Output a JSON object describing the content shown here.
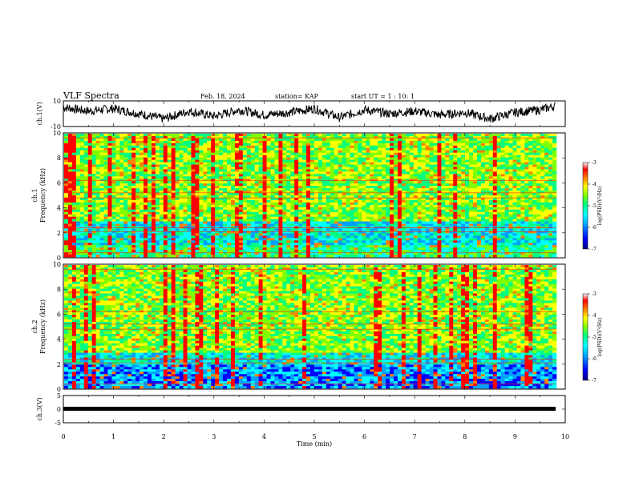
{
  "header": {
    "title": "VLF Spectra",
    "date": "Feb. 18, 2024",
    "station": "station= KAP",
    "start": "start UT = 1 : 10: 1"
  },
  "colors": {
    "waveform": "#000000",
    "colormap": [
      "#000080",
      "#0000ff",
      "#00a0ff",
      "#00ffff",
      "#00ff80",
      "#80ff00",
      "#ffff00",
      "#ff8000",
      "#ff0000",
      "#ffffff"
    ]
  },
  "chart_data": [
    {
      "type": "line",
      "panel": "waveform-ch1",
      "ylabel": "ch.1(V)",
      "ylim": [
        -10,
        10
      ],
      "yticks": [
        "10",
        "-10"
      ],
      "xlim": [
        0,
        10
      ],
      "description_values_note": "signal oscillates roughly between -8 and 10 V",
      "sample_x": [
        0,
        0.5,
        1,
        1.5,
        2,
        2.5,
        3,
        3.5,
        4,
        4.5,
        5,
        5.5,
        6,
        6.5,
        7,
        7.5,
        8,
        8.5,
        9,
        9.5,
        9.8
      ],
      "sample_y": [
        5,
        2,
        4,
        0,
        -4,
        2,
        -2,
        3,
        -1,
        1,
        4,
        -3,
        3,
        0,
        2,
        -1,
        1,
        -4,
        1,
        3,
        6
      ]
    },
    {
      "type": "heatmap",
      "panel": "spectrogram-ch1",
      "ylabel": "ch.1 Frequency (kHz)",
      "ylim": [
        0,
        10
      ],
      "yticks": [
        "0",
        "2",
        "4",
        "6",
        "8",
        "10"
      ],
      "xlim": [
        0,
        10
      ],
      "colorbar": {
        "label": "log(PSD)(V²/Hz)",
        "ticks": [
          "-3",
          "-4",
          "-5",
          "-6",
          "-7"
        ],
        "range": [
          -7,
          -3
        ]
      }
    },
    {
      "type": "heatmap",
      "panel": "spectrogram-ch2",
      "ylabel": "ch.2 Frequency (kHz)",
      "ylim": [
        0,
        10
      ],
      "yticks": [
        "0",
        "2",
        "4",
        "6",
        "8",
        "10"
      ],
      "xlim": [
        0,
        10
      ],
      "colorbar": {
        "label": "log(PSD)(V²/Hz)",
        "ticks": [
          "-3",
          "-4",
          "-5",
          "-6",
          "-7"
        ],
        "range": [
          -7,
          -3
        ]
      }
    },
    {
      "type": "line",
      "panel": "waveform-ch3",
      "ylabel": "ch.3(V)",
      "ylim": [
        -5,
        5
      ],
      "yticks": [
        "5",
        "0",
        "-5"
      ],
      "xlim": [
        0,
        10
      ],
      "x": [
        0,
        9.8
      ],
      "y": [
        -0.5,
        -0.5
      ]
    }
  ],
  "xaxis": {
    "label": "Time (min)",
    "ticks": [
      "0",
      "1",
      "2",
      "3",
      "4",
      "5",
      "6",
      "7",
      "8",
      "9",
      "10"
    ]
  }
}
